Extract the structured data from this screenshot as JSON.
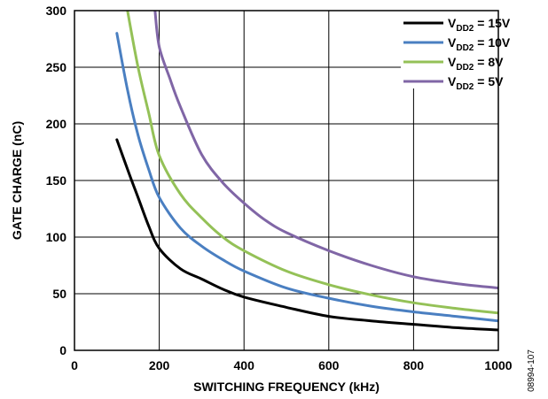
{
  "chart_data": {
    "type": "line",
    "title": "",
    "xlabel": "SWITCHING FREQUENCY (kHz)",
    "ylabel": "GATE CHARGE (nC)",
    "xlim": [
      0,
      1000
    ],
    "ylim": [
      0,
      300
    ],
    "x_ticks": [
      "0",
      "200",
      "400",
      "600",
      "800",
      "1000"
    ],
    "y_ticks": [
      "0",
      "50",
      "100",
      "150",
      "200",
      "250",
      "300"
    ],
    "grid": true,
    "legend_position": "top-right",
    "series": [
      {
        "legend_main": "V",
        "legend_sub": "DD2",
        "legend_value": " = 15V",
        "color": "#000000",
        "x": [
          100,
          125,
          150,
          175,
          200,
          250,
          300,
          350,
          400,
          500,
          600,
          700,
          800,
          900,
          1000
        ],
        "y": [
          186,
          160,
          135,
          110,
          90,
          72,
          63,
          54,
          47,
          38,
          30,
          26,
          23,
          20,
          18
        ]
      },
      {
        "legend_main": "V",
        "legend_sub": "DD2",
        "legend_value": " = 10V",
        "color": "#4a7fc1",
        "x": [
          100,
          125,
          150,
          175,
          200,
          250,
          300,
          350,
          400,
          500,
          600,
          700,
          800,
          900,
          1000
        ],
        "y": [
          280,
          230,
          190,
          160,
          135,
          108,
          92,
          80,
          70,
          55,
          46,
          39,
          34,
          30,
          26
        ]
      },
      {
        "legend_main": "V",
        "legend_sub": "DD2",
        "legend_value": " = 8V",
        "color": "#94c157",
        "x": [
          125,
          150,
          175,
          200,
          250,
          300,
          350,
          400,
          500,
          600,
          700,
          800,
          900,
          1000
        ],
        "y": [
          300,
          250,
          210,
          172,
          138,
          117,
          100,
          88,
          70,
          58,
          49,
          42,
          37,
          33
        ]
      },
      {
        "legend_main": "V",
        "legend_sub": "DD2",
        "legend_value": " = 5V",
        "color": "#8066a6",
        "x": [
          190,
          200,
          225,
          250,
          300,
          350,
          400,
          450,
          500,
          600,
          700,
          800,
          900,
          1000
        ],
        "y": [
          300,
          268,
          240,
          215,
          173,
          148,
          130,
          115,
          104,
          88,
          75,
          65,
          59,
          55
        ]
      }
    ]
  },
  "figure_id": "08994-107"
}
